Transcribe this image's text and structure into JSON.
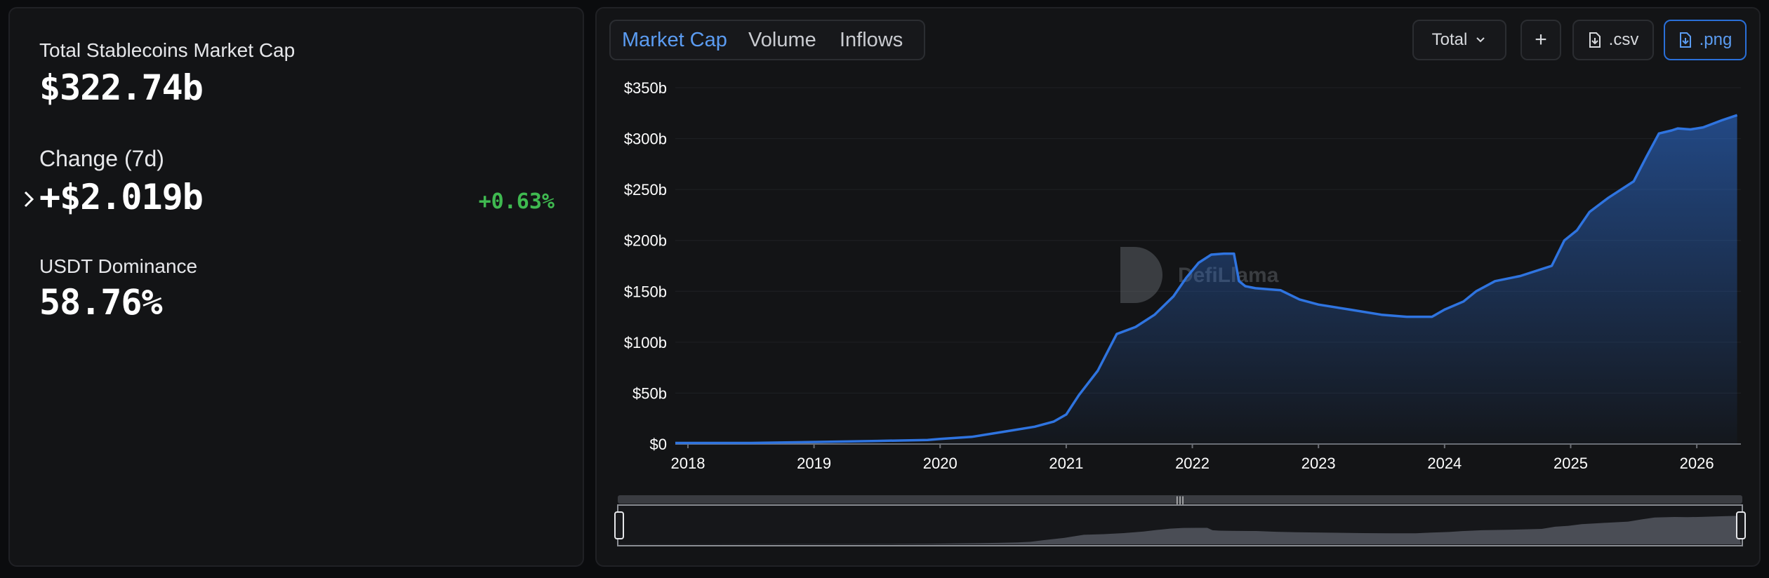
{
  "stats": {
    "market_cap_label": "Total Stablecoins Market Cap",
    "market_cap_value": "$322.74b",
    "change_label": "Change (7d)",
    "change_value": "+$2.019b",
    "change_percent": "+0.63%",
    "dominance_label": "USDT Dominance",
    "dominance_value": "58.76%"
  },
  "tabs": [
    {
      "label": "Market Cap",
      "active": true
    },
    {
      "label": "Volume",
      "active": false
    },
    {
      "label": "Inflows",
      "active": false
    }
  ],
  "toolbar": {
    "total_label": "Total",
    "add_label": "+",
    "csv_label": ".csv",
    "png_label": ".png"
  },
  "watermark": "DefiLlama",
  "colors": {
    "line": "#2f74e0",
    "positive": "#3fb950",
    "accent": "#5b9cf2"
  },
  "chart_data": {
    "type": "area",
    "title": "",
    "xlabel": "",
    "ylabel": "",
    "yticks": [
      "$0",
      "$50b",
      "$100b",
      "$150b",
      "$200b",
      "$250b",
      "$300b",
      "$350b"
    ],
    "xticks": [
      "2018",
      "2019",
      "2020",
      "2021",
      "2022",
      "2023",
      "2024",
      "2025",
      "2026"
    ],
    "ylim": [
      0,
      350
    ],
    "xlim": [
      2017.9,
      2026.35
    ],
    "grid": true,
    "series": [
      {
        "unit": "$b",
        "x": [
          2017.9,
          2018.5,
          2019.0,
          2019.5,
          2019.9,
          2020.0,
          2020.25,
          2020.5,
          2020.75,
          2020.9,
          2021.0,
          2021.1,
          2021.25,
          2021.4,
          2021.55,
          2021.7,
          2021.85,
          2021.95,
          2022.05,
          2022.15,
          2022.25,
          2022.33,
          2022.37,
          2022.42,
          2022.5,
          2022.7,
          2022.85,
          2023.0,
          2023.25,
          2023.5,
          2023.7,
          2023.9,
          2024.0,
          2024.15,
          2024.25,
          2024.4,
          2024.6,
          2024.85,
          2024.95,
          2025.05,
          2025.15,
          2025.3,
          2025.5,
          2025.6,
          2025.7,
          2025.8,
          2025.85,
          2025.95,
          2026.05,
          2026.2,
          2026.32
        ],
        "y": [
          1,
          1,
          2,
          3,
          4,
          5,
          7,
          12,
          17,
          22,
          29,
          48,
          72,
          108,
          115,
          127,
          145,
          163,
          178,
          186,
          187,
          187,
          160,
          155,
          153,
          151,
          142,
          137,
          132,
          127,
          125,
          125,
          132,
          140,
          150,
          160,
          165,
          175,
          200,
          210,
          228,
          242,
          258,
          282,
          305,
          308,
          310,
          309,
          311,
          318,
          323
        ]
      }
    ]
  }
}
